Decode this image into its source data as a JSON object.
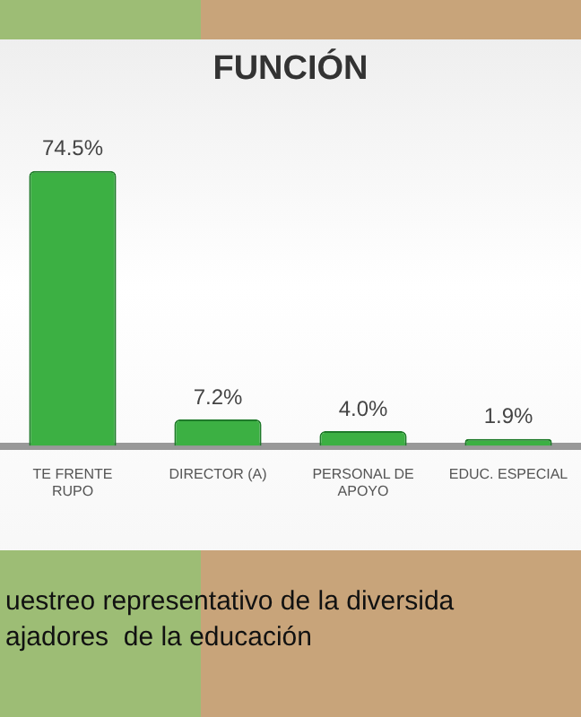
{
  "chart_data": {
    "type": "bar",
    "title": "FUNCIÓN",
    "categories": [
      "TE FRENTE\nRUPO",
      "DIRECTOR (A)",
      "PERSONAL DE\nAPOYO",
      "EDUC. ESPECIAL"
    ],
    "values": [
      74.5,
      7.2,
      4.0,
      1.9
    ],
    "value_labels": [
      "74.5%",
      "7.2%",
      "4.0%",
      "1.9%"
    ],
    "color": "#3cb043",
    "tick_labels": "x",
    "annotations": [
      "uestreo representativo de la diversida",
      "ajadores  de la educación"
    ]
  }
}
